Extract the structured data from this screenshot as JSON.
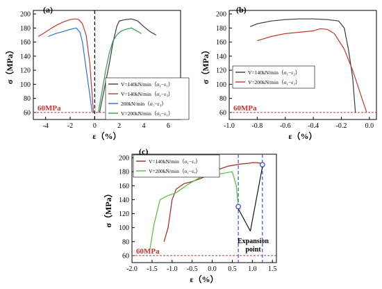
{
  "chart_data": [
    {
      "panel_label": "(a)",
      "type": "line",
      "xlabel": "ε（%）",
      "ylabel": "σ（MPa）",
      "xlim": [
        -5,
        7
      ],
      "ylim": [
        50,
        205
      ],
      "xticks": [
        -4,
        -2,
        0,
        2,
        4,
        6
      ],
      "yticks": [
        60,
        80,
        100,
        120,
        140,
        160,
        180,
        200
      ],
      "reference_label": "60MPa",
      "reference_y": 60,
      "vertical_dashed_x": 0,
      "series": [
        {
          "name": "V=140kN/min（σ₁−ε₁）",
          "color": "#3a3a3a",
          "x": [
            0.4,
            0.8,
            1.2,
            1.5,
            1.8,
            2.0,
            2.5,
            3.0,
            3.5,
            4.0,
            4.5,
            5.0
          ],
          "y": [
            60,
            95,
            130,
            160,
            182,
            190,
            192,
            193,
            190,
            182,
            175,
            170
          ]
        },
        {
          "name": "V=140kN/min（σ₁−ε₃）",
          "color": "#c0392b",
          "x": [
            -4.6,
            -4.2,
            -3.5,
            -3.0,
            -2.5,
            -2.0,
            -1.6,
            -1.3,
            -1.0,
            -0.7,
            -0.4,
            -0.25,
            -0.1
          ],
          "y": [
            168,
            172,
            180,
            185,
            189,
            192,
            193,
            192,
            186,
            170,
            130,
            95,
            60
          ]
        },
        {
          "name": "200kN/min（σ₁−ε₃）",
          "color": "#2f6fd6",
          "x": [
            -3.8,
            -3.2,
            -2.6,
            -2.0,
            -1.5,
            -1.2,
            -1.0,
            -0.8,
            -0.6,
            -0.4,
            -0.2
          ],
          "y": [
            168,
            172,
            175,
            178,
            180,
            174,
            160,
            135,
            110,
            85,
            60
          ]
        },
        {
          "name": "V=200kN/min（σ₁−ε₁）",
          "color": "#2e9e4a",
          "x": [
            0.3,
            0.6,
            0.9,
            1.2,
            1.5,
            1.8,
            2.1,
            2.5,
            3.0,
            3.5,
            3.8
          ],
          "y": [
            60,
            90,
            120,
            145,
            162,
            170,
            175,
            178,
            180,
            175,
            172
          ]
        }
      ]
    },
    {
      "panel_label": "(b)",
      "type": "line",
      "xlabel": "ε（%）",
      "ylabel": "σ（MPa）",
      "xlim": [
        -1.0,
        0.05
      ],
      "ylim": [
        50,
        205
      ],
      "xticks": [
        -1.0,
        -0.8,
        -0.6,
        -0.4,
        -0.2,
        0.0
      ],
      "yticks": [
        60,
        80,
        100,
        120,
        140,
        160,
        180,
        200
      ],
      "reference_label": "60MPa",
      "reference_y": 60,
      "series": [
        {
          "name": "V=140kN/min（σ₁−ε₂）",
          "color": "#3a3a3a",
          "x": [
            -0.85,
            -0.8,
            -0.7,
            -0.6,
            -0.5,
            -0.4,
            -0.3,
            -0.22,
            -0.18,
            -0.15,
            -0.12,
            -0.1
          ],
          "y": [
            182,
            186,
            190,
            192,
            193,
            193,
            192,
            190,
            180,
            150,
            110,
            60
          ]
        },
        {
          "name": "V=200kN/min（σ₁−ε₂）",
          "color": "#c0392b",
          "x": [
            -0.8,
            -0.7,
            -0.6,
            -0.5,
            -0.4,
            -0.35,
            -0.3,
            -0.25,
            -0.18,
            -0.12,
            -0.07,
            -0.02
          ],
          "y": [
            162,
            168,
            172,
            174,
            176,
            179,
            178,
            172,
            150,
            120,
            90,
            60
          ]
        }
      ]
    },
    {
      "panel_label": "(c)",
      "type": "line",
      "xlabel": "ε（%）",
      "ylabel": "σ（MPa）",
      "xlim": [
        -2.0,
        1.6
      ],
      "ylim": [
        50,
        205
      ],
      "xticks": [
        -2.0,
        -1.5,
        -1.0,
        -0.5,
        0.0,
        0.5,
        1.0,
        1.5
      ],
      "yticks": [
        60,
        80,
        100,
        120,
        140,
        160,
        180,
        200
      ],
      "reference_label": "60MPa",
      "reference_y": 60,
      "vertical_dashed_x": [
        0.65,
        1.25
      ],
      "annotation": "Expansion\npoint",
      "expansion_points": [
        {
          "x": 0.65,
          "y": 130
        },
        {
          "x": 1.25,
          "y": 190
        }
      ],
      "series": [
        {
          "name": "V=140kN/min（σ₁−εᵥ）",
          "color": "#a0271c",
          "x": [
            -1.2,
            -1.1,
            -1.0,
            -0.9,
            -0.7,
            -0.5,
            -0.3,
            -0.1,
            0.1,
            0.4,
            0.7,
            0.9,
            1.0,
            1.1,
            1.25
          ],
          "y": [
            80,
            100,
            140,
            155,
            163,
            166,
            170,
            175,
            182,
            188,
            191,
            192,
            193,
            193,
            192
          ]
        },
        {
          "name": "V=200kN/min（σ₁−εᵥ）",
          "color": "#4cc22e",
          "x": [
            -1.55,
            -1.45,
            -1.3,
            -1.1,
            -0.9,
            -0.6,
            -0.3,
            0.0,
            0.3,
            0.5,
            0.6,
            0.65
          ],
          "y": [
            70,
            105,
            140,
            146,
            150,
            162,
            172,
            175,
            178,
            180,
            160,
            130
          ]
        }
      ]
    }
  ]
}
